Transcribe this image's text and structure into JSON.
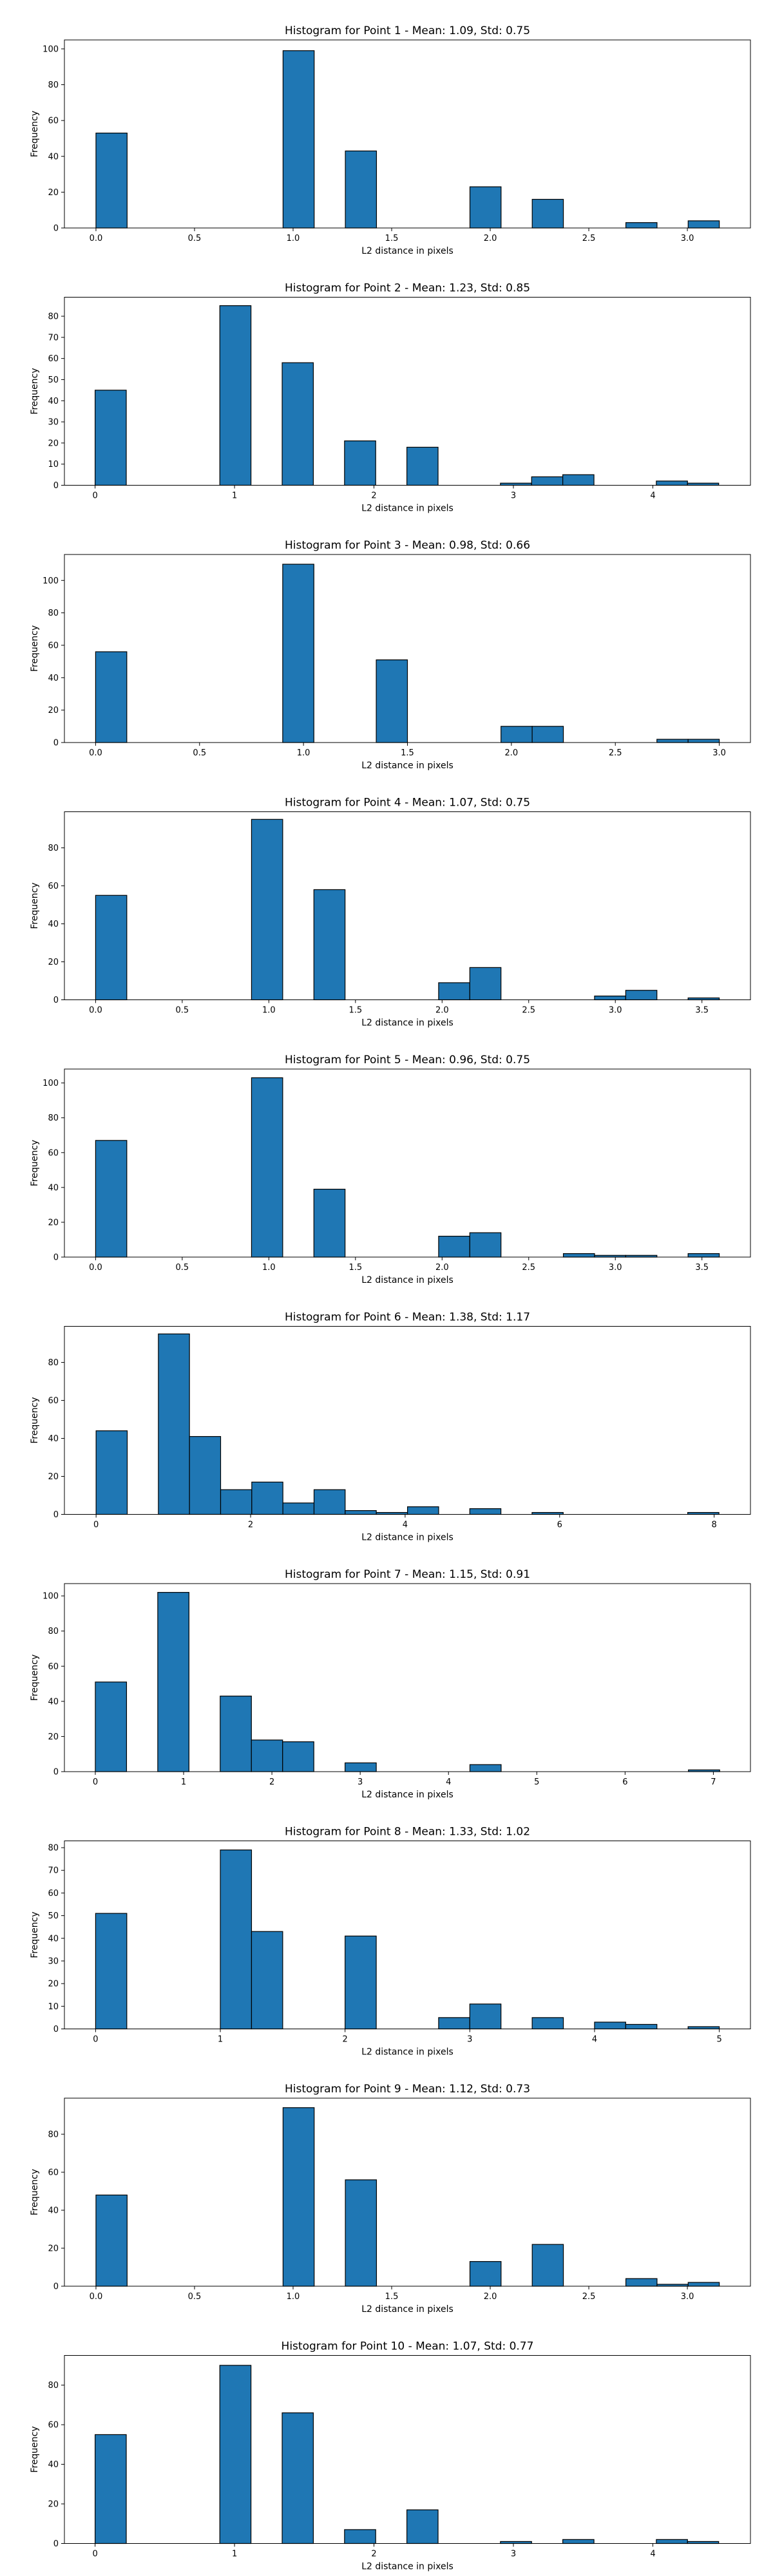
{
  "figure": {
    "background": "#ffffff",
    "bar_color": "#1f77b4",
    "edge_color": "#000000"
  },
  "chart_data": [
    {
      "type": "bar",
      "title": "Histogram for Point 1 - Mean: 1.09, Std: 0.75",
      "xlabel": "L2 distance in pixels",
      "ylabel": "Frequency",
      "xlim": [
        -0.16,
        3.32
      ],
      "ylim": [
        0,
        105
      ],
      "xticks": [
        0.0,
        0.5,
        1.0,
        1.5,
        2.0,
        2.5,
        3.0
      ],
      "xtick_labels": [
        "0.0",
        "0.5",
        "1.0",
        "1.5",
        "2.0",
        "2.5",
        "3.0"
      ],
      "yticks": [
        0,
        20,
        40,
        60,
        80,
        100
      ],
      "ytick_labels": [
        "0",
        "20",
        "40",
        "60",
        "80",
        "100"
      ],
      "bin_edges": [
        0,
        0.158,
        0.316,
        0.474,
        0.632,
        0.79,
        0.949,
        1.107,
        1.265,
        1.423,
        1.581,
        1.739,
        1.897,
        2.055,
        2.213,
        2.371,
        2.53,
        2.688,
        2.846,
        3.004,
        3.162
      ],
      "values": [
        53,
        0,
        0,
        0,
        0,
        0,
        99,
        0,
        43,
        0,
        0,
        0,
        23,
        0,
        16,
        0,
        0,
        3,
        0,
        4
      ],
      "grid": false,
      "legend": "none"
    },
    {
      "type": "bar",
      "title": "Histogram for Point 2 - Mean: 1.23, Std: 0.85",
      "xlabel": "L2 distance in pixels",
      "ylabel": "Frequency",
      "xlim": [
        -0.22,
        4.7
      ],
      "ylim": [
        0,
        89
      ],
      "xticks": [
        0,
        1,
        2,
        3,
        4
      ],
      "xtick_labels": [
        "0",
        "1",
        "2",
        "3",
        "4"
      ],
      "yticks": [
        0,
        10,
        20,
        30,
        40,
        50,
        60,
        70,
        80
      ],
      "ytick_labels": [
        "0",
        "10",
        "20",
        "30",
        "40",
        "50",
        "60",
        "70",
        "80"
      ],
      "bin_edges": [
        0,
        0.2236,
        0.4472,
        0.6708,
        0.8944,
        1.118,
        1.3416,
        1.5652,
        1.7888,
        2.0124,
        2.236,
        2.4596,
        2.6833,
        2.9069,
        3.1305,
        3.3541,
        3.5777,
        3.8013,
        4.0249,
        4.2485,
        4.4721
      ],
      "values": [
        45,
        0,
        0,
        0,
        85,
        0,
        58,
        0,
        21,
        0,
        18,
        0,
        0,
        1,
        4,
        5,
        0,
        0,
        2,
        1
      ],
      "grid": false,
      "legend": "none"
    },
    {
      "type": "bar",
      "title": "Histogram for Point 3 - Mean: 0.98, Std: 0.66",
      "xlabel": "L2 distance in pixels",
      "ylabel": "Frequency",
      "xlim": [
        -0.15,
        3.15
      ],
      "ylim": [
        0,
        116
      ],
      "xticks": [
        0.0,
        0.5,
        1.0,
        1.5,
        2.0,
        2.5,
        3.0
      ],
      "xtick_labels": [
        "0.0",
        "0.5",
        "1.0",
        "1.5",
        "2.0",
        "2.5",
        "3.0"
      ],
      "yticks": [
        0,
        20,
        40,
        60,
        80,
        100
      ],
      "ytick_labels": [
        "0",
        "20",
        "40",
        "60",
        "80",
        "100"
      ],
      "bin_edges": [
        0,
        0.15,
        0.3,
        0.45,
        0.6,
        0.75,
        0.9,
        1.05,
        1.2,
        1.35,
        1.5,
        1.65,
        1.8,
        1.95,
        2.1,
        2.25,
        2.4,
        2.55,
        2.7,
        2.85,
        3.0
      ],
      "values": [
        56,
        0,
        0,
        0,
        0,
        0,
        110,
        0,
        0,
        51,
        0,
        0,
        0,
        10,
        10,
        0,
        0,
        0,
        2,
        2
      ],
      "grid": false,
      "legend": "none"
    },
    {
      "type": "bar",
      "title": "Histogram for Point 4 - Mean: 1.07, Std: 0.75",
      "xlabel": "L2 distance in pixels",
      "ylabel": "Frequency",
      "xlim": [
        -0.18,
        3.78
      ],
      "ylim": [
        0,
        99
      ],
      "xticks": [
        0.0,
        0.5,
        1.0,
        1.5,
        2.0,
        2.5,
        3.0,
        3.5
      ],
      "xtick_labels": [
        "0.0",
        "0.5",
        "1.0",
        "1.5",
        "2.0",
        "2.5",
        "3.0",
        "3.5"
      ],
      "yticks": [
        0,
        20,
        40,
        60,
        80
      ],
      "ytick_labels": [
        "0",
        "20",
        "40",
        "60",
        "80"
      ],
      "bin_edges": [
        0,
        0.18,
        0.36,
        0.54,
        0.72,
        0.9,
        1.08,
        1.26,
        1.44,
        1.62,
        1.8,
        1.98,
        2.16,
        2.34,
        2.52,
        2.7,
        2.88,
        3.06,
        3.24,
        3.42,
        3.6
      ],
      "values": [
        55,
        0,
        0,
        0,
        0,
        95,
        0,
        58,
        0,
        0,
        0,
        9,
        17,
        0,
        0,
        0,
        2,
        5,
        0,
        1
      ],
      "grid": false,
      "legend": "none"
    },
    {
      "type": "bar",
      "title": "Histogram for Point 5 - Mean: 0.96, Std: 0.75",
      "xlabel": "L2 distance in pixels",
      "ylabel": "Frequency",
      "xlim": [
        -0.18,
        3.78
      ],
      "ylim": [
        0,
        108
      ],
      "xticks": [
        0.0,
        0.5,
        1.0,
        1.5,
        2.0,
        2.5,
        3.0,
        3.5
      ],
      "xtick_labels": [
        "0.0",
        "0.5",
        "1.0",
        "1.5",
        "2.0",
        "2.5",
        "3.0",
        "3.5"
      ],
      "yticks": [
        0,
        20,
        40,
        60,
        80,
        100
      ],
      "ytick_labels": [
        "0",
        "20",
        "40",
        "60",
        "80",
        "100"
      ],
      "bin_edges": [
        0,
        0.18,
        0.36,
        0.54,
        0.72,
        0.9,
        1.08,
        1.26,
        1.44,
        1.62,
        1.8,
        1.98,
        2.16,
        2.34,
        2.52,
        2.7,
        2.88,
        3.06,
        3.24,
        3.42,
        3.6
      ],
      "values": [
        67,
        0,
        0,
        0,
        0,
        103,
        0,
        39,
        0,
        0,
        0,
        12,
        14,
        0,
        0,
        2,
        1,
        1,
        0,
        2
      ],
      "grid": false,
      "legend": "none"
    },
    {
      "type": "bar",
      "title": "Histogram for Point 6 - Mean: 1.38, Std: 1.17",
      "xlabel": "L2 distance in pixels",
      "ylabel": "Frequency",
      "xlim": [
        -0.41,
        8.47
      ],
      "ylim": [
        0,
        99
      ],
      "xticks": [
        0,
        2,
        4,
        6,
        8
      ],
      "xtick_labels": [
        "0",
        "2",
        "4",
        "6",
        "8"
      ],
      "yticks": [
        0,
        20,
        40,
        60,
        80
      ],
      "ytick_labels": [
        "0",
        "20",
        "40",
        "60",
        "80"
      ],
      "bin_edges": [
        0,
        0.403,
        0.806,
        1.209,
        1.612,
        2.015,
        2.418,
        2.821,
        3.224,
        3.627,
        4.031,
        4.434,
        4.837,
        5.24,
        5.643,
        6.046,
        6.449,
        6.852,
        7.255,
        7.658,
        8.062
      ],
      "values": [
        44,
        0,
        95,
        41,
        13,
        17,
        6,
        13,
        2,
        1,
        4,
        0,
        3,
        0,
        1,
        0,
        0,
        0,
        0,
        1
      ],
      "grid": false,
      "legend": "none"
    },
    {
      "type": "bar",
      "title": "Histogram for Point 7 - Mean: 1.15, Std: 0.91",
      "xlabel": "L2 distance in pixels",
      "ylabel": "Frequency",
      "xlim": [
        -0.35,
        7.42
      ],
      "ylim": [
        0,
        107
      ],
      "xticks": [
        0,
        1,
        2,
        3,
        4,
        5,
        6,
        7
      ],
      "xtick_labels": [
        "0",
        "1",
        "2",
        "3",
        "4",
        "5",
        "6",
        "7"
      ],
      "yticks": [
        0,
        20,
        40,
        60,
        80,
        100
      ],
      "ytick_labels": [
        "0",
        "20",
        "40",
        "60",
        "80",
        "100"
      ],
      "bin_edges": [
        0,
        0.3536,
        0.7071,
        1.0607,
        1.4142,
        1.7678,
        2.1213,
        2.4749,
        2.8284,
        3.182,
        3.5355,
        3.8891,
        4.2426,
        4.5962,
        4.9497,
        5.3033,
        5.6569,
        6.0104,
        6.364,
        6.7175,
        7.0711
      ],
      "values": [
        51,
        0,
        102,
        0,
        43,
        18,
        17,
        0,
        5,
        0,
        0,
        0,
        4,
        0,
        0,
        0,
        0,
        0,
        0,
        1
      ],
      "grid": false,
      "legend": "none"
    },
    {
      "type": "bar",
      "title": "Histogram for Point 8 - Mean: 1.33, Std: 1.02",
      "xlabel": "L2 distance in pixels",
      "ylabel": "Frequency",
      "xlim": [
        -0.25,
        5.25
      ],
      "ylim": [
        0,
        83
      ],
      "xticks": [
        0,
        1,
        2,
        3,
        4,
        5
      ],
      "xtick_labels": [
        "0",
        "1",
        "2",
        "3",
        "4",
        "5"
      ],
      "yticks": [
        0,
        10,
        20,
        30,
        40,
        50,
        60,
        70,
        80
      ],
      "ytick_labels": [
        "0",
        "10",
        "20",
        "30",
        "40",
        "50",
        "60",
        "70",
        "80"
      ],
      "bin_edges": [
        0,
        0.25,
        0.5,
        0.75,
        1.0,
        1.25,
        1.5,
        1.75,
        2.0,
        2.25,
        2.5,
        2.75,
        3.0,
        3.25,
        3.5,
        3.75,
        4.0,
        4.25,
        4.5,
        4.75,
        5.0
      ],
      "values": [
        51,
        0,
        0,
        0,
        79,
        43,
        0,
        0,
        41,
        0,
        0,
        5,
        11,
        0,
        5,
        0,
        3,
        2,
        0,
        1
      ],
      "grid": false,
      "legend": "none"
    },
    {
      "type": "bar",
      "title": "Histogram for Point 9 - Mean: 1.12, Std: 0.73",
      "xlabel": "L2 distance in pixels",
      "ylabel": "Frequency",
      "xlim": [
        -0.16,
        3.32
      ],
      "ylim": [
        0,
        99
      ],
      "xticks": [
        0.0,
        0.5,
        1.0,
        1.5,
        2.0,
        2.5,
        3.0
      ],
      "xtick_labels": [
        "0.0",
        "0.5",
        "1.0",
        "1.5",
        "2.0",
        "2.5",
        "3.0"
      ],
      "yticks": [
        0,
        20,
        40,
        60,
        80
      ],
      "ytick_labels": [
        "0",
        "20",
        "40",
        "60",
        "80"
      ],
      "bin_edges": [
        0,
        0.158,
        0.316,
        0.474,
        0.632,
        0.79,
        0.949,
        1.107,
        1.265,
        1.423,
        1.581,
        1.739,
        1.897,
        2.055,
        2.213,
        2.371,
        2.53,
        2.688,
        2.846,
        3.004,
        3.162
      ],
      "values": [
        48,
        0,
        0,
        0,
        0,
        0,
        94,
        0,
        56,
        0,
        0,
        0,
        13,
        0,
        22,
        0,
        0,
        4,
        1,
        2
      ],
      "grid": false,
      "legend": "none"
    },
    {
      "type": "bar",
      "title": "Histogram for Point 10 - Mean: 1.07, Std: 0.77",
      "xlabel": "L2 distance in pixels",
      "ylabel": "Frequency",
      "xlim": [
        -0.22,
        4.7
      ],
      "ylim": [
        0,
        95
      ],
      "xticks": [
        0,
        1,
        2,
        3,
        4
      ],
      "xtick_labels": [
        "0",
        "1",
        "2",
        "3",
        "4"
      ],
      "yticks": [
        0,
        20,
        40,
        60,
        80
      ],
      "ytick_labels": [
        "0",
        "20",
        "40",
        "60",
        "80"
      ],
      "bin_edges": [
        0,
        0.2236,
        0.4472,
        0.6708,
        0.8944,
        1.118,
        1.3416,
        1.5652,
        1.7888,
        2.0124,
        2.236,
        2.4596,
        2.6833,
        2.9069,
        3.1305,
        3.3541,
        3.5777,
        3.8013,
        4.0249,
        4.2485,
        4.4721
      ],
      "values": [
        55,
        0,
        0,
        0,
        90,
        0,
        66,
        0,
        7,
        0,
        17,
        0,
        0,
        1,
        0,
        2,
        0,
        0,
        2,
        1
      ],
      "grid": false,
      "legend": "none"
    }
  ]
}
